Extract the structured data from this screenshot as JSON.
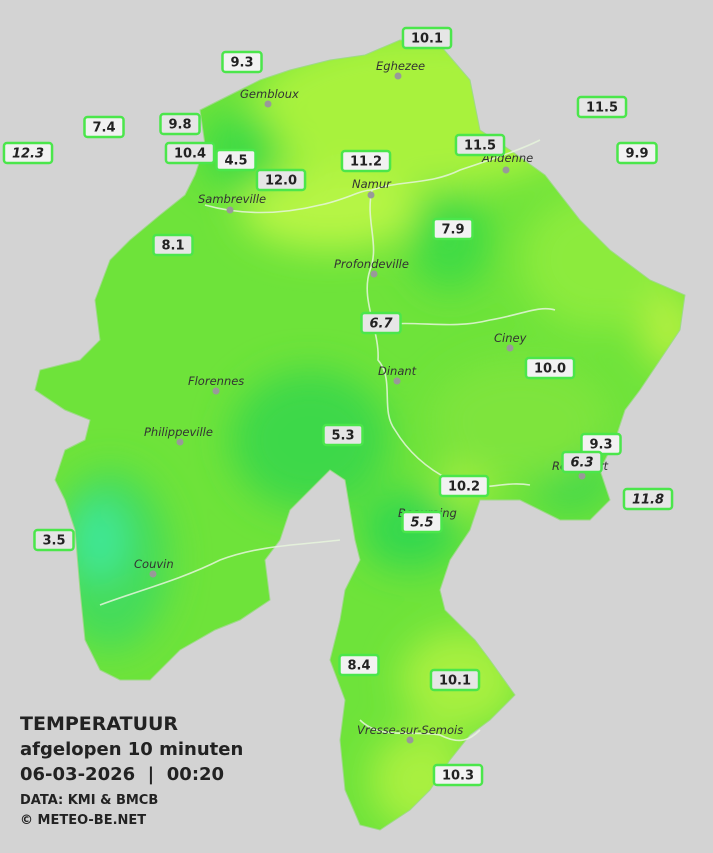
{
  "legend": {
    "title": "TEMPERATUUR",
    "subtitle": "afgelopen 10 minuten",
    "datetime": "06-03-2026  |  00:20",
    "source": "DATA: KMI & BMCB",
    "credit": "© METEO-BE.NET"
  },
  "towns": [
    "Eghezee",
    "Gembloux",
    "Andenne",
    "Namur",
    "Sambreville",
    "Profondeville",
    "Ciney",
    "Dinant",
    "Florennes",
    "Philippeville",
    "Beauraing",
    "Rochefort",
    "Couvin",
    "Vresse-sur-Semois"
  ],
  "stations": [
    {
      "label": "10.1",
      "italic": false
    },
    {
      "label": "9.3",
      "italic": false
    },
    {
      "label": "11.5",
      "italic": false
    },
    {
      "label": "7.4",
      "italic": false
    },
    {
      "label": "9.8",
      "italic": false
    },
    {
      "label": "12.3",
      "italic": true
    },
    {
      "label": "10.4",
      "italic": false
    },
    {
      "label": "4.5",
      "italic": false
    },
    {
      "label": "12.0",
      "italic": false
    },
    {
      "label": "11.2",
      "italic": false
    },
    {
      "label": "11.5",
      "italic": false
    },
    {
      "label": "9.9",
      "italic": false
    },
    {
      "label": "8.1",
      "italic": false
    },
    {
      "label": "7.9",
      "italic": false
    },
    {
      "label": "6.7",
      "italic": true
    },
    {
      "label": "10.0",
      "italic": false
    },
    {
      "label": "5.3",
      "italic": false
    },
    {
      "label": "9.3",
      "italic": false
    },
    {
      "label": "6.3",
      "italic": true
    },
    {
      "label": "10.2",
      "italic": false
    },
    {
      "label": "11.8",
      "italic": true
    },
    {
      "label": "5.5",
      "italic": true
    },
    {
      "label": "3.5",
      "italic": false
    },
    {
      "label": "8.4",
      "italic": false
    },
    {
      "label": "10.1",
      "italic": false
    },
    {
      "label": "10.3",
      "italic": false
    }
  ]
}
